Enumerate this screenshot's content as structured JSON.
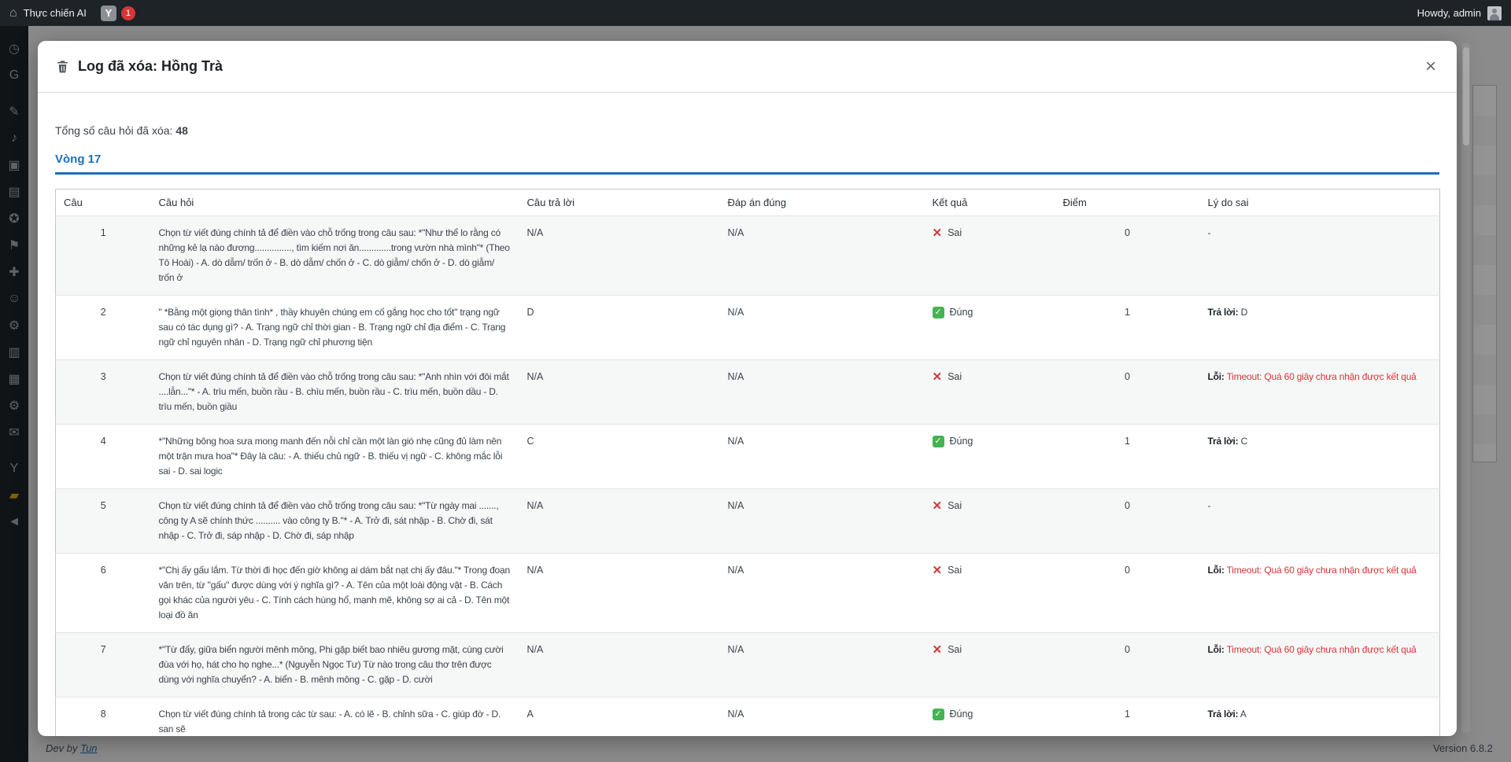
{
  "admin_bar": {
    "site_name": "Thực chiến AI",
    "yoast_letter": "Y",
    "notification_count": "1",
    "howdy": "Howdy, admin"
  },
  "sidebar": {
    "items": [
      {
        "name": "dashboard",
        "glyph": "◷"
      },
      {
        "name": "site-kit-google",
        "glyph": "G"
      },
      {
        "name": "posts",
        "glyph": "✎",
        "gap_before": true
      },
      {
        "name": "media",
        "glyph": "♪"
      },
      {
        "name": "pages",
        "glyph": "▣"
      },
      {
        "name": "quiz-notes",
        "glyph": "▤"
      },
      {
        "name": "award",
        "glyph": "✪"
      },
      {
        "name": "appearance",
        "glyph": "⚑"
      },
      {
        "name": "plugins",
        "glyph": "✚"
      },
      {
        "name": "users",
        "glyph": "☺"
      },
      {
        "name": "tools",
        "glyph": "⚙"
      },
      {
        "name": "settings-panel",
        "glyph": "▥"
      },
      {
        "name": "list-table",
        "glyph": "▦"
      },
      {
        "name": "settings-gear",
        "glyph": "⚙"
      },
      {
        "name": "mail",
        "glyph": "✉"
      },
      {
        "name": "yoast-seo",
        "glyph": "Y",
        "gap_before": true
      },
      {
        "name": "plugin-orange",
        "glyph": "▰",
        "color": "#dba617"
      },
      {
        "name": "collapse-menu",
        "glyph": "◄"
      }
    ]
  },
  "modal": {
    "title": "Log đã xóa: Hồng Trà",
    "close_label": "×",
    "total_label": "Tổng số câu hỏi đã xóa:",
    "total_value": "48",
    "tab_label": "Vòng 17",
    "accent_color": "#1d6eb8",
    "table": {
      "headers": [
        "Câu",
        "Câu hỏi",
        "Câu trả lời",
        "Đáp án đúng",
        "Kết quả",
        "Điểm",
        "Lý do sai"
      ],
      "rows": [
        {
          "num": "1",
          "question": "Chọn từ viết đúng chính tả để điền vào chỗ trống trong câu sau: *\"Như thể lo rằng có những kẻ lạ nào đương..............., tìm kiếm nơi ăn.............trong vườn nhà mình\"* (Theo Tô Hoài) - A. dò dẫm/ trốn ở - B. dò dẫm/ chốn ở - C. dò giẫm/ chốn ở - D. dò giẫm/ trốn ở",
          "answer": "N/A",
          "correct": "N/A",
          "result": "Sai",
          "result_ok": false,
          "points": "0",
          "reason_bold": "",
          "reason_text": "-",
          "reason_error": false
        },
        {
          "num": "2",
          "question": "\" *Bằng một giọng thân tình* , thầy khuyên chúng em cố gắng học cho tốt\" trạng ngữ sau có tác dụng gì? - A. Trạng ngữ chỉ thời gian - B. Trạng ngữ chỉ địa điểm - C. Trạng ngữ chỉ nguyên nhân - D. Trạng ngữ chỉ phương tiện",
          "answer": "D",
          "correct": "N/A",
          "result": "Đúng",
          "result_ok": true,
          "points": "1",
          "reason_bold": "Trả lời:",
          "reason_text": " D",
          "reason_error": false
        },
        {
          "num": "3",
          "question": "Chọn từ viết đúng chính tả để điền vào chỗ trống trong câu sau: *\"Anh nhìn với đôi mắt ....lẫn...\"* - A. trìu mến, buồn rầu - B. chìu mến, buồn rầu - C. trìu mến, buồn dầu - D. trìu mến, buồn giầu",
          "answer": "N/A",
          "correct": "N/A",
          "result": "Sai",
          "result_ok": false,
          "points": "0",
          "reason_bold": "Lỗi:",
          "reason_text": " Timeout: Quá 60 giây chưa nhận được kết quả",
          "reason_error": true
        },
        {
          "num": "4",
          "question": "*\"Những bông hoa sưa mong manh đến nỗi chỉ cần một làn gió nhẹ cũng đủ làm nên một trận mưa hoa\"* Đây là câu: - A. thiếu chủ ngữ - B. thiếu vị ngữ - C. không mắc lỗi sai - D. sai logic",
          "answer": "C",
          "correct": "N/A",
          "result": "Đúng",
          "result_ok": true,
          "points": "1",
          "reason_bold": "Trả lời:",
          "reason_text": " C",
          "reason_error": false
        },
        {
          "num": "5",
          "question": "Chọn từ viết đúng chính tả để điền vào chỗ trống trong câu sau: *\"Từ ngày mai ......., công ty A sẽ chính thức .......... vào công ty B.\"* - A. Trở đi, sát nhập - B. Chờ đi, sát nhập - C. Trở đi, sáp nhập - D. Chờ đi, sáp nhập",
          "answer": "N/A",
          "correct": "N/A",
          "result": "Sai",
          "result_ok": false,
          "points": "0",
          "reason_bold": "",
          "reason_text": "-",
          "reason_error": false
        },
        {
          "num": "6",
          "question": "*\"Chị ấy gấu lắm. Từ thời đi học đến giờ không ai dám bắt nạt chị ấy đâu.\"* Trong đoạn văn trên, từ \"gấu\" được dùng với ý nghĩa gì? - A. Tên của một loài động vật - B. Cách gọi khác của người yêu - C. Tính cách hùng hổ, mạnh mẽ, không sợ ai cả - D. Tên một loại đồ ăn",
          "answer": "N/A",
          "correct": "N/A",
          "result": "Sai",
          "result_ok": false,
          "points": "0",
          "reason_bold": "Lỗi:",
          "reason_text": " Timeout: Quá 60 giây chưa nhận được kết quả",
          "reason_error": true
        },
        {
          "num": "7",
          "question": "*\"Từ đấy, giữa biển người mênh mông, Phi gặp biết bao nhiêu gương mặt, cùng cười đùa với họ, hát cho họ nghe...* (Nguyễn Ngọc Tư) Từ nào trong câu thơ trên được dùng với nghĩa chuyển? - A. biển - B. mênh mông - C. gặp - D. cười",
          "answer": "N/A",
          "correct": "N/A",
          "result": "Sai",
          "result_ok": false,
          "points": "0",
          "reason_bold": "Lỗi:",
          "reason_text": " Timeout: Quá 60 giây chưa nhận được kết quả",
          "reason_error": true
        },
        {
          "num": "8",
          "question": "Chọn từ viết đúng chính tả trong các từ sau: - A. có lẽ - B. chỉnh sữa - C. giúp đờ - D. san sẽ",
          "answer": "A",
          "correct": "N/A",
          "result": "Đúng",
          "result_ok": true,
          "points": "1",
          "reason_bold": "Trả lời:",
          "reason_text": " A",
          "reason_error": false
        }
      ]
    }
  },
  "footer": {
    "dev_prefix": "Dev by",
    "dev_link": "Tun",
    "version": "Version 6.8.2"
  },
  "colors": {
    "accent_blue": "#1d6eb8",
    "error_red": "#d63638",
    "success_green": "#46b450",
    "adminbar_bg": "#1d2327"
  }
}
